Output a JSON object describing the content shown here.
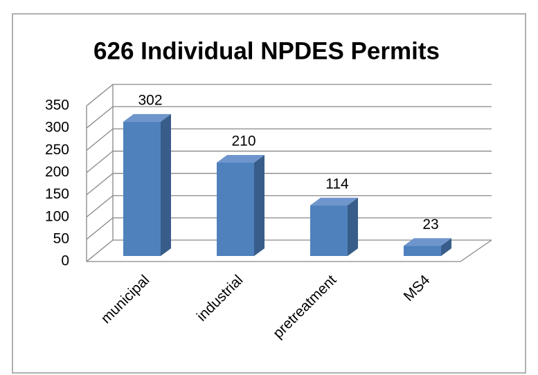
{
  "chart_data": {
    "type": "bar3d",
    "title": "626 Individual NPDES Permits",
    "categories": [
      "municipal",
      "industrial",
      "pretreatment",
      "MS4"
    ],
    "values": [
      302,
      210,
      114,
      23
    ],
    "color": "#4f81bd",
    "ylim": [
      0,
      350
    ],
    "yticks": [
      0,
      50,
      100,
      150,
      200,
      250,
      300,
      350
    ],
    "grid": true
  }
}
